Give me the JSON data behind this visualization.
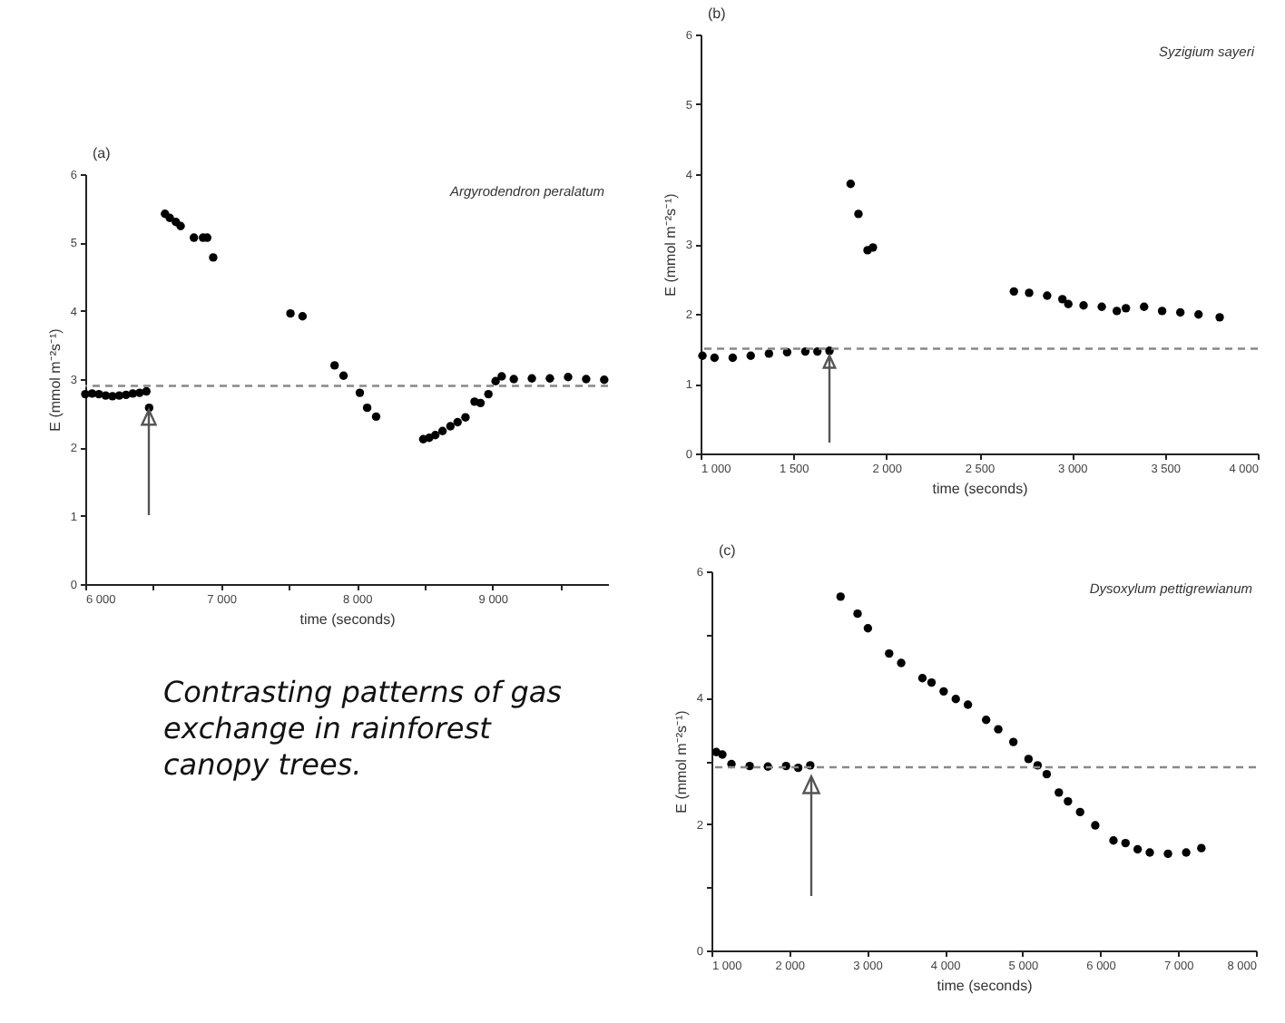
{
  "chart_data": [
    {
      "type": "scatter",
      "title": "(a)",
      "xlabel": "time (seconds)",
      "ylabel": "E (mmol m⁻²s⁻¹)",
      "annotations": [
        "Argyrodendron peralatum",
        "Contrasting patterns of gas exchange in rainforest canopy trees."
      ],
      "marker": "circle",
      "xlim": [
        6000,
        9850
      ],
      "ylim": [
        0,
        6
      ],
      "xticks": [
        {
          "value": 6000,
          "label": "6 000"
        },
        {
          "value": 6500,
          "label": null
        },
        {
          "value": 7000,
          "label": "7 000"
        },
        {
          "value": 7500,
          "label": null
        },
        {
          "value": 8000,
          "label": "8 000"
        },
        {
          "value": 8500,
          "label": null
        },
        {
          "value": 9000,
          "label": "9 000"
        },
        {
          "value": 9500,
          "label": null
        }
      ],
      "yticks": [
        0,
        1,
        2,
        3,
        4,
        5,
        6
      ],
      "ref_lines": [
        {
          "axis": "y",
          "value": 2.9,
          "color": "#888888",
          "line_style": "dashed"
        }
      ],
      "series": [
        {
          "color": "#000000",
          "x": [
            6000,
            6050,
            6100,
            6150,
            6200,
            6250,
            6300,
            6350,
            6400,
            6450,
            6470,
            6587,
            6622,
            6667,
            6702,
            6800,
            6867,
            6898,
            6942,
            7511,
            7600,
            7836,
            7902,
            8022,
            8076,
            8142,
            8489,
            8533,
            8578,
            8631,
            8689,
            8742,
            8800,
            8867,
            8911,
            8969,
            9022,
            9067,
            9156,
            9289,
            9422,
            9556,
            9689,
            9822
          ],
          "values": [
            2.78,
            2.79,
            2.78,
            2.76,
            2.75,
            2.76,
            2.77,
            2.79,
            2.8,
            2.82,
            2.58,
            5.42,
            5.36,
            5.3,
            5.24,
            5.07,
            5.07,
            5.07,
            4.78,
            3.96,
            3.92,
            3.2,
            3.05,
            2.8,
            2.58,
            2.45,
            2.12,
            2.14,
            2.18,
            2.24,
            2.31,
            2.37,
            2.44,
            2.67,
            2.65,
            2.78,
            2.97,
            3.04,
            3.0,
            3.01,
            3.01,
            3.03,
            3.0,
            2.99
          ]
        }
      ]
    },
    {
      "type": "scatter",
      "title": "(b)",
      "xlabel": "time (seconds)",
      "ylabel": "E (mmol m⁻²s⁻¹)",
      "annotations": [
        "Syzigium sayeri"
      ],
      "marker": "circle",
      "xlim": [
        1000,
        4000
      ],
      "ylim": [
        0,
        6
      ],
      "xticks": [
        {
          "value": 1000,
          "label": "1 000"
        },
        {
          "value": 1500,
          "label": "1 500"
        },
        {
          "value": 2000,
          "label": "2 000"
        },
        {
          "value": 2500,
          "label": "2 500"
        },
        {
          "value": 3000,
          "label": "3 000"
        },
        {
          "value": 3500,
          "label": "3 500"
        },
        {
          "value": 4000,
          "label": "4 000"
        }
      ],
      "yticks": [
        0,
        1,
        2,
        3,
        4,
        5,
        6
      ],
      "ref_lines": [
        {
          "axis": "y",
          "value": 1.5,
          "color": "#888888",
          "line_style": "dashed"
        }
      ],
      "series": [
        {
          "color": "#000000",
          "x": [
            1010,
            1075,
            1173,
            1270,
            1368,
            1466,
            1564,
            1629,
            1694,
            1808,
            1850,
            1899,
            1928,
            2687,
            2769,
            2866,
            2948,
            2980,
            3062,
            3160,
            3241,
            3290,
            3388,
            3485,
            3583,
            3681,
            3795
          ],
          "values": [
            1.4,
            1.37,
            1.37,
            1.4,
            1.43,
            1.45,
            1.46,
            1.46,
            1.47,
            3.86,
            3.43,
            2.91,
            2.95,
            2.32,
            2.3,
            2.26,
            2.21,
            2.14,
            2.12,
            2.1,
            2.04,
            2.08,
            2.1,
            2.04,
            2.02,
            1.99,
            1.95
          ]
        }
      ]
    },
    {
      "type": "scatter",
      "title": "(c)",
      "xlabel": "time (seconds)",
      "ylabel": "E (mmol m⁻²s⁻¹)",
      "annotations": [
        "Dysoxylum pettigrewianum"
      ],
      "marker": "circle",
      "xlim": [
        1000,
        8000
      ],
      "ylim": [
        0,
        6
      ],
      "xticks": [
        {
          "value": 1000,
          "label": "1 000"
        },
        {
          "value": 2000,
          "label": "2 000"
        },
        {
          "value": 3000,
          "label": "3 000"
        },
        {
          "value": 4000,
          "label": "4 000"
        },
        {
          "value": 5000,
          "label": "5 000"
        },
        {
          "value": 6000,
          "label": "6 000"
        },
        {
          "value": 7000,
          "label": "7 000"
        },
        {
          "value": 8000,
          "label": "8 000"
        }
      ],
      "yticks": [
        0,
        {
          "value": 1,
          "label": null
        },
        2,
        {
          "value": 3,
          "label": null
        },
        4,
        {
          "value": 5,
          "label": null
        },
        6
      ],
      "ref_lines": [
        {
          "axis": "y",
          "value": 2.9,
          "color": "#888888",
          "line_style": "dashed"
        }
      ],
      "series": [
        {
          "color": "#000000",
          "x": [
            1062,
            1140,
            1257,
            1491,
            1725,
            1959,
            2115,
            2270,
            2660,
            2878,
            3011,
            3284,
            3439,
            3712,
            3829,
            3985,
            4141,
            4297,
            4531,
            4687,
            4881,
            5076,
            5193,
            5310,
            5466,
            5583,
            5739,
            5934,
            6168,
            6323,
            6479,
            6635,
            6869,
            7103,
            7298
          ],
          "values": [
            3.14,
            3.1,
            2.95,
            2.92,
            2.91,
            2.92,
            2.89,
            2.93,
            5.6,
            5.33,
            5.1,
            4.7,
            4.55,
            4.31,
            4.24,
            4.1,
            3.98,
            3.89,
            3.65,
            3.5,
            3.3,
            3.03,
            2.93,
            2.79,
            2.5,
            2.36,
            2.19,
            1.98,
            1.74,
            1.7,
            1.6,
            1.55,
            1.53,
            1.55,
            1.62
          ]
        }
      ]
    }
  ]
}
